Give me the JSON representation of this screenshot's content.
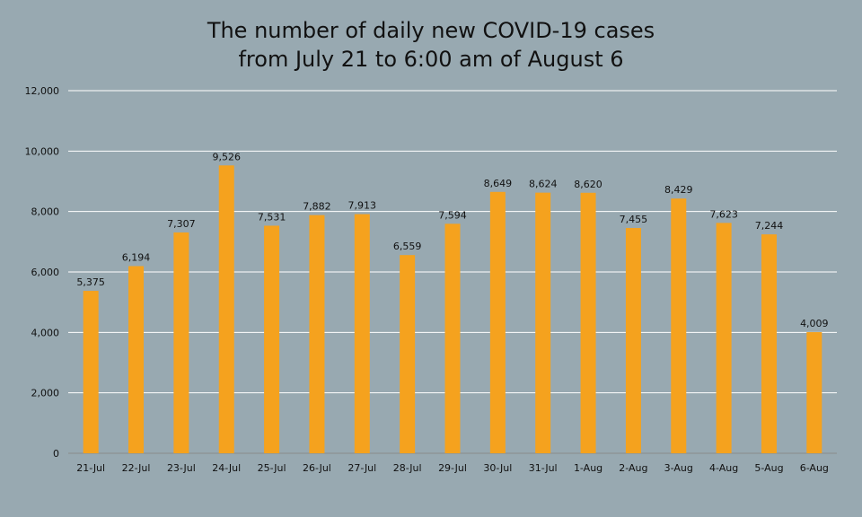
{
  "chart_data": {
    "type": "bar",
    "title_lines": [
      "The number of daily new COVID-19 cases",
      "from July 21 to 6:00 am of August 6"
    ],
    "categories": [
      "21-Jul",
      "22-Jul",
      "23-Jul",
      "24-Jul",
      "25-Jul",
      "26-Jul",
      "27-Jul",
      "28-Jul",
      "29-Jul",
      "30-Jul",
      "31-Jul",
      "1-Aug",
      "2-Aug",
      "3-Aug",
      "4-Aug",
      "5-Aug",
      "6-Aug"
    ],
    "values": [
      5375,
      6194,
      7307,
      9526,
      7531,
      7882,
      7913,
      6559,
      7594,
      8649,
      8624,
      8620,
      7455,
      8429,
      7623,
      7244,
      4009
    ],
    "value_labels": [
      "5,375",
      "6,194",
      "7,307",
      "9,526",
      "7,531",
      "7,882",
      "7,913",
      "6,559",
      "7,594",
      "8,649",
      "8,624",
      "8,620",
      "7,455",
      "8,429",
      "7,623",
      "7,244",
      "4,009"
    ],
    "y_ticks": [
      0,
      2000,
      4000,
      6000,
      8000,
      10000,
      12000
    ],
    "y_tick_labels": [
      "0",
      "2,000",
      "4,000",
      "6,000",
      "8,000",
      "10,000",
      "12,000"
    ],
    "ylim": [
      0,
      12000
    ],
    "grid": true,
    "legend": false,
    "bar_color": "#f5a21e",
    "grid_color": "#ffffff",
    "background_color": "#98a9b1"
  }
}
